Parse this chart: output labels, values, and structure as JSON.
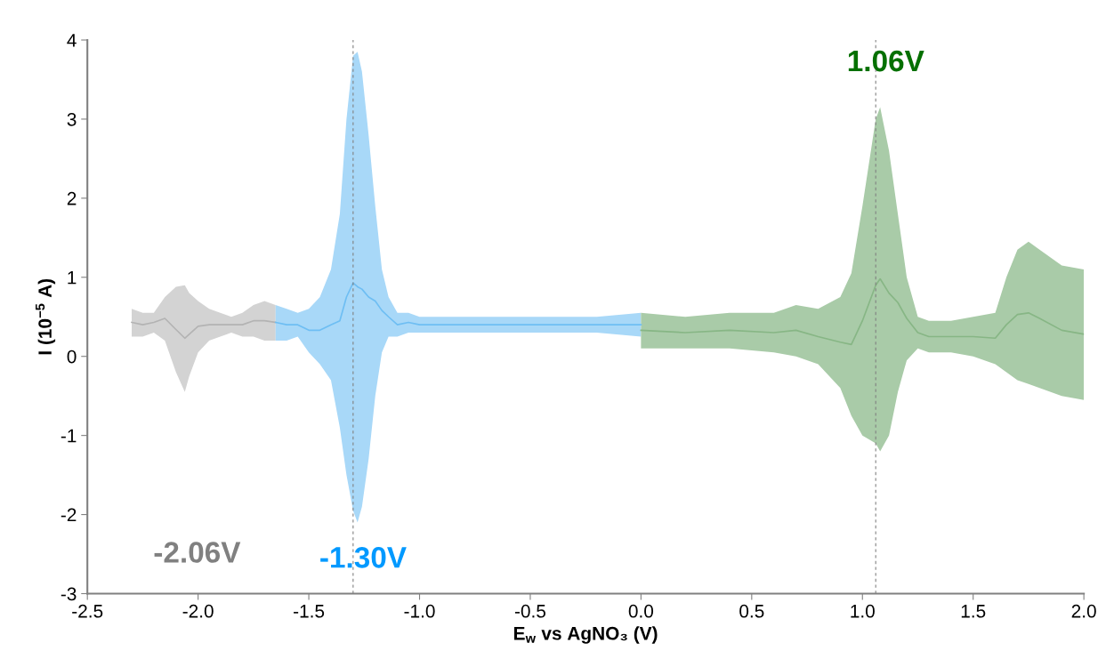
{
  "chart_data": {
    "type": "line",
    "xlabel": "E$_{w}$ vs AgNO₃ (V)",
    "ylabel": "I (10$^{−5}$ A)",
    "xlim": [
      -2.5,
      2.0
    ],
    "xticks": [
      -2.5,
      {
        "value": -2,
        "label": "-2.0"
      },
      -1.5,
      {
        "value": -1,
        "label": "-1.0"
      },
      -0.5,
      {
        "value": 0,
        "label": "0.0"
      },
      0.5,
      {
        "value": 1,
        "label": "1.0"
      },
      1.5,
      {
        "value": 2,
        "label": "2.0"
      }
    ],
    "ylim": [
      -3,
      4
    ],
    "yticks": [
      -3,
      -2,
      -1,
      0,
      1,
      2,
      3,
      4
    ],
    "grid": false,
    "legend": false,
    "series": [
      {
        "color": "#b3b3b3",
        "x": [
          -2.3,
          -2.25,
          -2.2,
          -2.15,
          -2.1,
          -2.06,
          -2.04,
          -2.0,
          -1.95,
          -1.9,
          -1.85,
          -1.8,
          -1.75,
          -1.7,
          -1.65
        ],
        "values": [
          0.43,
          0.4,
          0.43,
          0.48,
          0.34,
          0.23,
          0.28,
          0.38,
          0.4,
          0.4,
          0.4,
          0.4,
          0.45,
          0.45,
          0.43
        ],
        "upper": [
          0.6,
          0.55,
          0.55,
          0.75,
          0.88,
          0.9,
          0.8,
          0.7,
          0.6,
          0.55,
          0.5,
          0.55,
          0.65,
          0.7,
          0.65
        ],
        "lower": [
          0.25,
          0.25,
          0.3,
          0.2,
          -0.2,
          -0.45,
          -0.25,
          0.05,
          0.2,
          0.25,
          0.3,
          0.25,
          0.25,
          0.2,
          0.2
        ]
      },
      {
        "color": "#6ebef3",
        "x": [
          -1.65,
          -1.6,
          -1.55,
          -1.5,
          -1.45,
          -1.4,
          -1.36,
          -1.33,
          -1.3,
          -1.28,
          -1.26,
          -1.23,
          -1.2,
          -1.17,
          -1.14,
          -1.1,
          -1.05,
          -1.0,
          -0.8,
          -0.6,
          -0.4,
          -0.2,
          0.0
        ],
        "values": [
          0.43,
          0.4,
          0.4,
          0.33,
          0.33,
          0.4,
          0.45,
          0.75,
          0.93,
          0.88,
          0.85,
          0.75,
          0.7,
          0.58,
          0.5,
          0.4,
          0.43,
          0.4,
          0.4,
          0.4,
          0.4,
          0.4,
          0.4
        ],
        "upper": [
          0.65,
          0.6,
          0.55,
          0.6,
          0.75,
          1.1,
          1.8,
          3.0,
          3.8,
          3.85,
          3.6,
          2.8,
          1.9,
          1.1,
          0.75,
          0.55,
          0.55,
          0.5,
          0.5,
          0.5,
          0.5,
          0.5,
          0.55
        ],
        "lower": [
          0.2,
          0.2,
          0.25,
          0.05,
          -0.1,
          -0.3,
          -0.9,
          -1.5,
          -1.95,
          -2.1,
          -1.9,
          -1.3,
          -0.5,
          0.05,
          0.25,
          0.25,
          0.3,
          0.3,
          0.3,
          0.3,
          0.3,
          0.3,
          0.25
        ]
      },
      {
        "color": "#87b685",
        "x": [
          0,
          0.2,
          0.4,
          0.6,
          0.7,
          0.8,
          0.9,
          0.95,
          1.0,
          1.06,
          1.08,
          1.12,
          1.16,
          1.2,
          1.25,
          1.3,
          1.4,
          1.5,
          1.6,
          1.65,
          1.7,
          1.75,
          1.8,
          1.9,
          2.0
        ],
        "values": [
          0.33,
          0.3,
          0.33,
          0.3,
          0.33,
          0.25,
          0.18,
          0.15,
          0.45,
          0.9,
          0.98,
          0.8,
          0.68,
          0.48,
          0.3,
          0.25,
          0.25,
          0.25,
          0.23,
          0.4,
          0.53,
          0.55,
          0.48,
          0.33,
          0.28
        ],
        "upper": [
          0.55,
          0.5,
          0.55,
          0.55,
          0.65,
          0.6,
          0.75,
          1.05,
          1.9,
          3.0,
          3.15,
          2.6,
          1.8,
          1.0,
          0.5,
          0.45,
          0.45,
          0.5,
          0.55,
          1.0,
          1.35,
          1.45,
          1.35,
          1.15,
          1.1
        ],
        "lower": [
          0.1,
          0.1,
          0.1,
          0.05,
          0.0,
          -0.1,
          -0.4,
          -0.75,
          -1.0,
          -1.1,
          -1.2,
          -1.0,
          -0.45,
          -0.05,
          0.1,
          0.05,
          0.05,
          0.0,
          -0.1,
          -0.2,
          -0.3,
          -0.35,
          -0.4,
          -0.5,
          -0.55
        ]
      }
    ],
    "ref_lines": [
      {
        "axis": "x",
        "value": -1.3,
        "color": "#808080",
        "line_style": "dashed"
      },
      {
        "axis": "x",
        "value": 1.06,
        "color": "#808080",
        "line_style": "dashed"
      }
    ],
    "annotations": [
      "-2.06V",
      {
        "text": "-1.30V",
        "x": -1.3,
        "y": -1.95
      },
      {
        "text": "1.06V",
        "x": 1.06,
        "y": 3.0
      }
    ]
  }
}
